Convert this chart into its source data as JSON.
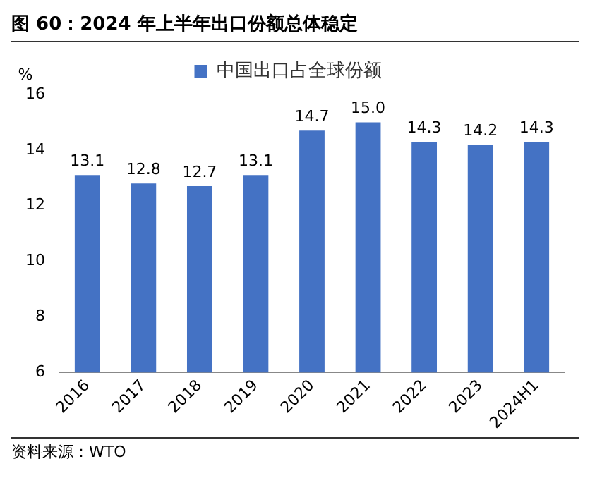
{
  "chart_data": {
    "type": "bar",
    "title": "图 60：2024 年上半年出口份额总体稳定",
    "ylabel": "%",
    "categories": [
      "2016",
      "2017",
      "2018",
      "2019",
      "2020",
      "2021",
      "2022",
      "2023",
      "2024H1"
    ],
    "series": [
      {
        "name": "中国出口占全球份额",
        "color": "#4472c4",
        "values": [
          13.1,
          12.8,
          12.7,
          13.1,
          14.7,
          15.0,
          14.3,
          14.2,
          14.3
        ],
        "value_labels": [
          "13.1",
          "12.8",
          "12.7",
          "13.1",
          "14.7",
          "15.0",
          "14.3",
          "14.2",
          "14.3"
        ]
      }
    ],
    "ylim": [
      6,
      16
    ],
    "yticks": [
      6,
      8,
      10,
      12,
      14,
      16
    ],
    "grid": false,
    "legend": "top",
    "annotations": [
      "资料来源：WTO"
    ]
  }
}
